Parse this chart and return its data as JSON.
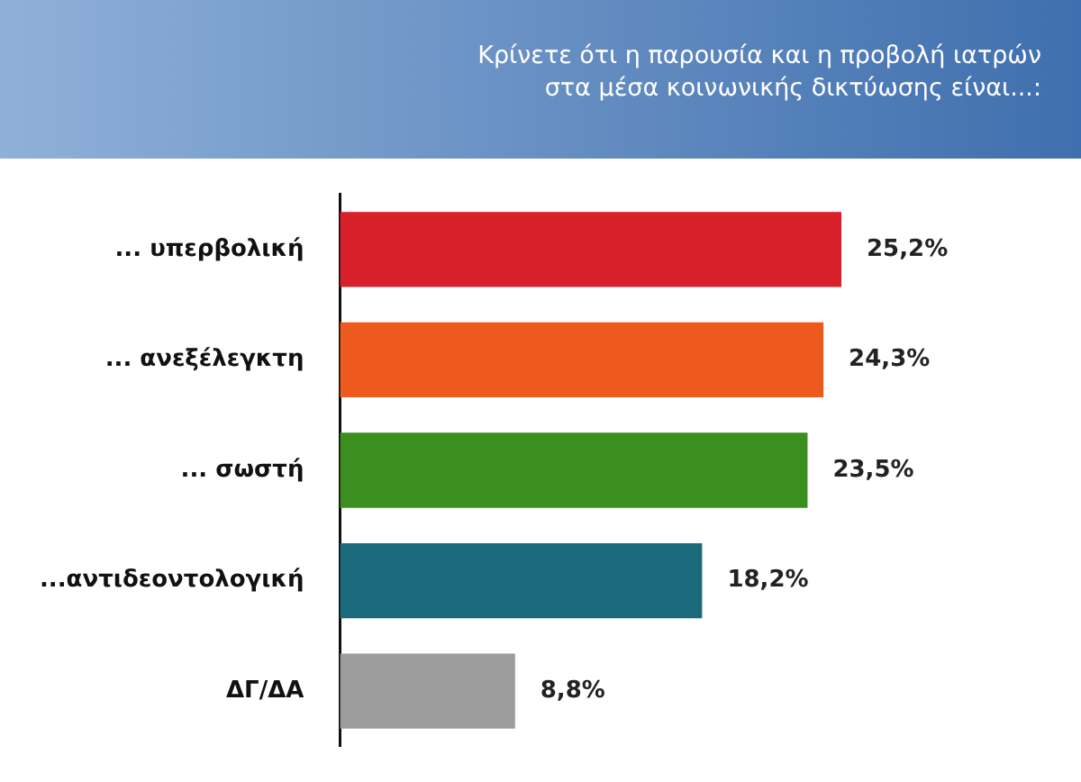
{
  "chart_data": {
    "type": "bar",
    "orientation": "horizontal",
    "title": "Κρίνετε ότι η παρουσία και η προβολή ιατρών\nστα μέσα κοινωνικής δικτύωσης είναι...:",
    "categories": [
      "... υπερβολική",
      "... ανεξέλεγκτη",
      "... σωστή",
      "...αντιδεοντολογική",
      "ΔΓ/ΔΑ"
    ],
    "values": [
      25.2,
      24.3,
      23.5,
      18.2,
      8.8
    ],
    "colors": [
      "#d7202a",
      "#ee5a1e",
      "#3a8f1e",
      "#1b6a7c",
      "#9c9c9c"
    ],
    "value_labels": [
      "25,2%",
      "24,3%",
      "23,5%",
      "18,2%",
      "8,8%"
    ],
    "legend": false
  }
}
